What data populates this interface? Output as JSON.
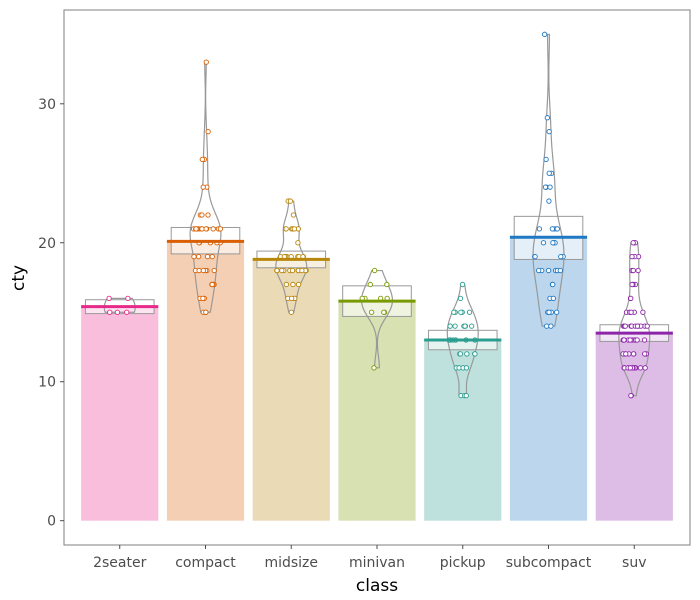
{
  "chart_data": {
    "type": "bar",
    "title": "",
    "xlabel": "class",
    "ylabel": "cty",
    "ylim": [
      -1.75,
      36.75
    ],
    "yticks": [
      0,
      10,
      20,
      30
    ],
    "grid": false,
    "categories": [
      "2seater",
      "compact",
      "midsize",
      "minivan",
      "pickup",
      "subcompact",
      "suv"
    ],
    "colors": [
      "#e7298a",
      "#d95f02",
      "#b8860b",
      "#7a9a01",
      "#2a9d8f",
      "#1f78c4",
      "#8e24aa"
    ],
    "means": [
      15.4,
      20.1,
      18.8,
      15.8,
      13.0,
      20.4,
      13.5
    ],
    "ci": [
      [
        14.9,
        15.9
      ],
      [
        19.2,
        21.1
      ],
      [
        18.2,
        19.4
      ],
      [
        14.7,
        16.9
      ],
      [
        12.3,
        13.7
      ],
      [
        18.8,
        21.9
      ],
      [
        12.9,
        14.1
      ]
    ],
    "points": [
      [
        15,
        16,
        15,
        16,
        15
      ],
      [
        18,
        21,
        20,
        21,
        16,
        18,
        18,
        18,
        16,
        20,
        19,
        15,
        17,
        17,
        15,
        15,
        17,
        16,
        17,
        21,
        19,
        21,
        21,
        21,
        21,
        22,
        26,
        28,
        33,
        26,
        24,
        24,
        22,
        20,
        19,
        18,
        21,
        19,
        21,
        21,
        18,
        20,
        21,
        22,
        20,
        21,
        21
      ],
      [
        18,
        19,
        17,
        18,
        16,
        18,
        18,
        17,
        15,
        16,
        18,
        18,
        19,
        18,
        21,
        21,
        21,
        19,
        22,
        18,
        23,
        23,
        19,
        19,
        18,
        19,
        19,
        21,
        21,
        21,
        19,
        18,
        18,
        17,
        18,
        19,
        20,
        21,
        16,
        16,
        21
      ],
      [
        18,
        17,
        16,
        16,
        17,
        15,
        15,
        16,
        11,
        15,
        16
      ],
      [
        15,
        14,
        13,
        13,
        13,
        11,
        12,
        14,
        14,
        11,
        12,
        9,
        17,
        15,
        9,
        11,
        12,
        13,
        13,
        13,
        14,
        14,
        12,
        15,
        16,
        15,
        11,
        14,
        14,
        13,
        15,
        12,
        9
      ],
      [
        18,
        16,
        20,
        19,
        20,
        18,
        21,
        28,
        24,
        25,
        23,
        24,
        26,
        25,
        24,
        21,
        18,
        18,
        21,
        21,
        18,
        18,
        19,
        19,
        19,
        20,
        20,
        17,
        29,
        15,
        35,
        14,
        15,
        16,
        17,
        15,
        14,
        15,
        21,
        20
      ],
      [
        15,
        11,
        14,
        13,
        12,
        16,
        15,
        14,
        11,
        11,
        14,
        11,
        9,
        13,
        11,
        12,
        13,
        9,
        13,
        11,
        11,
        11,
        12,
        14,
        15,
        14,
        13,
        13,
        13,
        14,
        14,
        13,
        13,
        18,
        17,
        19,
        19,
        20,
        20,
        14,
        15,
        15,
        16,
        14,
        13,
        12,
        13,
        14,
        17,
        17,
        18,
        18,
        19,
        20,
        12,
        12,
        12,
        11,
        11,
        12,
        11,
        14
      ]
    ]
  }
}
